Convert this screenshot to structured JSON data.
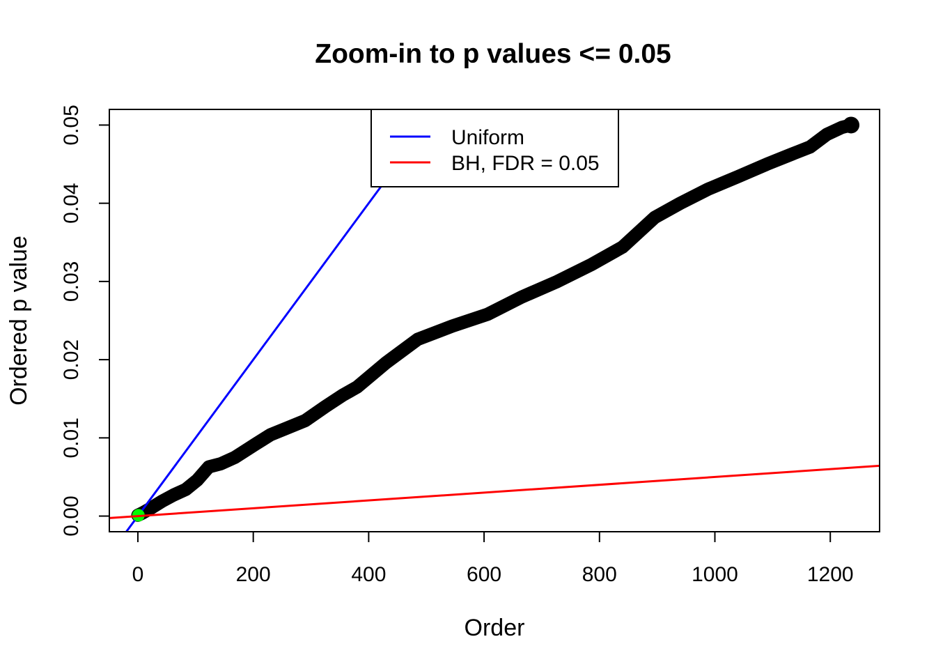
{
  "chart_data": {
    "type": "scatter",
    "title": "Zoom-in to p values <= 0.05",
    "xlabel": "Order",
    "ylabel": "Ordered p value",
    "xlim": [
      0,
      1236
    ],
    "ylim": [
      0,
      0.05
    ],
    "axis_expansion": 0.04,
    "grid": false,
    "x_ticks": {
      "values": [
        0,
        200,
        400,
        600,
        800,
        1000,
        1200
      ],
      "labels": [
        "0",
        "200",
        "400",
        "600",
        "800",
        "1000",
        "1200"
      ]
    },
    "y_ticks": {
      "values": [
        0,
        0.01,
        0.02,
        0.03,
        0.04,
        0.05
      ],
      "labels": [
        "0.00",
        "0.01",
        "0.02",
        "0.03",
        "0.04",
        "0.05"
      ]
    },
    "legend": {
      "position": "top",
      "items": [
        {
          "label": "Uniform",
          "color": "#0000FF"
        },
        {
          "label": "BH, FDR = 0.05",
          "color": "#FF0000"
        }
      ]
    },
    "series": {
      "ordered_p_values": {
        "name": "Ordered p values",
        "type": "points",
        "color": "#000000",
        "n_points": 1236,
        "marker_px": 19,
        "sample": [
          [
            0,
            0.0001
          ],
          [
            8,
            0.0004
          ],
          [
            20,
            0.0009
          ],
          [
            42,
            0.0019
          ],
          [
            62,
            0.0027
          ],
          [
            83,
            0.0034
          ],
          [
            103,
            0.0046
          ],
          [
            123,
            0.0063
          ],
          [
            144,
            0.0067
          ],
          [
            168,
            0.0075
          ],
          [
            204,
            0.0092
          ],
          [
            230,
            0.0104
          ],
          [
            260,
            0.0113
          ],
          [
            290,
            0.0122
          ],
          [
            325,
            0.014
          ],
          [
            356,
            0.0155
          ],
          [
            380,
            0.0165
          ],
          [
            430,
            0.0196
          ],
          [
            485,
            0.0226
          ],
          [
            545,
            0.0243
          ],
          [
            606,
            0.0258
          ],
          [
            665,
            0.028
          ],
          [
            727,
            0.03
          ],
          [
            787,
            0.0322
          ],
          [
            840,
            0.0344
          ],
          [
            896,
            0.0382
          ],
          [
            940,
            0.04
          ],
          [
            988,
            0.0418
          ],
          [
            1040,
            0.0434
          ],
          [
            1090,
            0.045
          ],
          [
            1134,
            0.0463
          ],
          [
            1165,
            0.0472
          ],
          [
            1194,
            0.0488
          ],
          [
            1220,
            0.0497
          ],
          [
            1236,
            0.05
          ]
        ]
      },
      "uniform_line": {
        "name": "Uniform",
        "type": "abline",
        "color": "#0000FF",
        "intercept": 0,
        "slope": 0.0001
      },
      "bh_line": {
        "name": "BH, FDR = 0.05",
        "type": "abline",
        "color": "#FF0000",
        "intercept": 0,
        "slope": 5e-06
      },
      "highlight_point": {
        "name": "Smallest p value",
        "type": "point",
        "color": "#00FF00",
        "x": 1,
        "y": 0.0001,
        "radius_px": 9
      }
    }
  }
}
